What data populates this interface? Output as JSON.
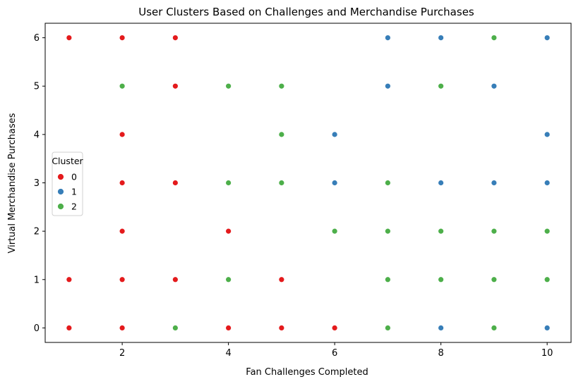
{
  "chart_data": {
    "type": "scatter",
    "title": "User Clusters Based on Challenges and Merchandise Purchases",
    "xlabel": "Fan Challenges Completed",
    "ylabel": "Virtual Merchandise Purchases",
    "xlim": [
      0.55,
      10.45
    ],
    "ylim": [
      -0.3,
      6.3
    ],
    "xticks": [
      2,
      4,
      6,
      8,
      10
    ],
    "yticks": [
      0,
      1,
      2,
      3,
      4,
      5,
      6
    ],
    "grid": false,
    "legend": {
      "title": "Cluster",
      "placement": "center-left"
    },
    "series": [
      {
        "name": "0",
        "color": "#e41a1c",
        "points": [
          [
            1,
            6
          ],
          [
            2,
            6
          ],
          [
            3,
            6
          ],
          [
            3,
            5
          ],
          [
            2,
            4
          ],
          [
            2,
            3
          ],
          [
            3,
            3
          ],
          [
            2,
            2
          ],
          [
            4,
            2
          ],
          [
            1,
            1
          ],
          [
            2,
            1
          ],
          [
            3,
            1
          ],
          [
            5,
            1
          ],
          [
            1,
            0
          ],
          [
            2,
            0
          ],
          [
            4,
            0
          ],
          [
            5,
            0
          ],
          [
            6,
            0
          ]
        ]
      },
      {
        "name": "1",
        "color": "#377eb8",
        "points": [
          [
            7,
            6
          ],
          [
            8,
            6
          ],
          [
            10,
            6
          ],
          [
            7,
            5
          ],
          [
            9,
            5
          ],
          [
            6,
            4
          ],
          [
            10,
            4
          ],
          [
            6,
            3
          ],
          [
            8,
            3
          ],
          [
            9,
            3
          ],
          [
            10,
            3
          ],
          [
            8,
            0
          ],
          [
            10,
            0
          ]
        ]
      },
      {
        "name": "2",
        "color": "#4daf4a",
        "points": [
          [
            9,
            6
          ],
          [
            2,
            5
          ],
          [
            4,
            5
          ],
          [
            5,
            5
          ],
          [
            8,
            5
          ],
          [
            5,
            4
          ],
          [
            4,
            3
          ],
          [
            5,
            3
          ],
          [
            7,
            3
          ],
          [
            6,
            2
          ],
          [
            7,
            2
          ],
          [
            8,
            2
          ],
          [
            9,
            2
          ],
          [
            10,
            2
          ],
          [
            4,
            1
          ],
          [
            7,
            1
          ],
          [
            8,
            1
          ],
          [
            9,
            1
          ],
          [
            10,
            1
          ],
          [
            3,
            0
          ],
          [
            7,
            0
          ],
          [
            9,
            0
          ]
        ]
      }
    ]
  }
}
